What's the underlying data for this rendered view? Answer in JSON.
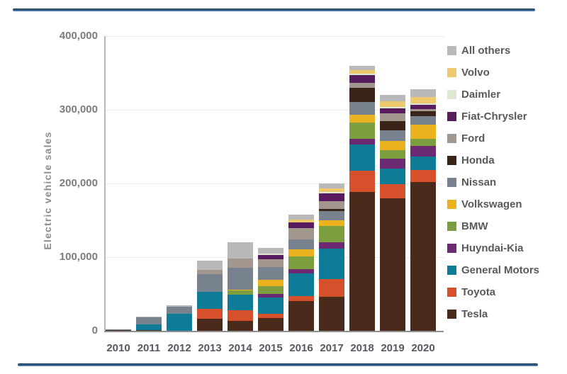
{
  "page": {
    "background_color": "#ffffff",
    "top_rule_color": "#35628e",
    "bottom_rule_color": "#35628e"
  },
  "chart_data": {
    "type": "bar",
    "stacked": true,
    "title": "",
    "xlabel": "",
    "ylabel": "Electric vehicle sales",
    "ylim": [
      0,
      400000
    ],
    "grid": true,
    "legend_position": "right",
    "categories": [
      "2010",
      "2011",
      "2012",
      "2013",
      "2014",
      "2015",
      "2016",
      "2017",
      "2018",
      "2019",
      "2020"
    ],
    "y_ticks": [
      {
        "value": 0,
        "label": "0"
      },
      {
        "value": 100000,
        "label": "100,000"
      },
      {
        "value": 200000,
        "label": "200,000"
      },
      {
        "value": 300000,
        "label": "300,000"
      },
      {
        "value": 400000,
        "label": "400,000"
      }
    ],
    "stack_order_note": "series listed bottom-to-top; legend shows reverse order (top-to-bottom)",
    "series": [
      {
        "name": "Tesla",
        "color": "#4a2a1b",
        "values": [
          500,
          800,
          0,
          16000,
          13000,
          17000,
          40000,
          46000,
          188000,
          180000,
          202000
        ]
      },
      {
        "name": "Toyota",
        "color": "#d7502c",
        "values": [
          0,
          0,
          0,
          14000,
          15000,
          6000,
          7000,
          24000,
          29000,
          19000,
          16000
        ]
      },
      {
        "name": "General Motors",
        "color": "#0e7c96",
        "values": [
          800,
          8000,
          23000,
          23000,
          21000,
          22000,
          31000,
          42000,
          36000,
          21000,
          19000
        ]
      },
      {
        "name": "Huyndai-Kia",
        "color": "#6b2a72",
        "values": [
          0,
          0,
          0,
          0,
          0,
          5000,
          6000,
          8000,
          8000,
          14000,
          14000
        ]
      },
      {
        "name": "BMW",
        "color": "#7b9e3f",
        "values": [
          0,
          0,
          0,
          0,
          6000,
          11000,
          17000,
          22000,
          22000,
          11000,
          10000
        ]
      },
      {
        "name": "Volkswagen",
        "color": "#ecb11f",
        "values": [
          0,
          0,
          0,
          0,
          1000,
          8000,
          10000,
          8000,
          10000,
          13000,
          19000
        ]
      },
      {
        "name": "Nissan",
        "color": "#77828e",
        "values": [
          700,
          9000,
          10000,
          24000,
          30000,
          18000,
          13000,
          13000,
          18000,
          14000,
          11000
        ]
      },
      {
        "name": "Honda",
        "color": "#3a2317",
        "values": [
          0,
          0,
          0,
          0,
          0,
          0,
          0,
          2000,
          19000,
          13000,
          7000
        ]
      },
      {
        "name": "Ford",
        "color": "#a2978e",
        "values": [
          0,
          0,
          0,
          6000,
          12000,
          10000,
          15000,
          11000,
          7000,
          10000,
          3000
        ]
      },
      {
        "name": "Fiat-Chrysler",
        "color": "#571b5e",
        "values": [
          0,
          0,
          0,
          0,
          0,
          6000,
          8000,
          11000,
          10000,
          7000,
          6000
        ]
      },
      {
        "name": "Daimler",
        "color": "#dde8d2",
        "values": [
          0,
          0,
          0,
          0,
          0,
          2000,
          0,
          2000,
          2000,
          2000,
          2000
        ]
      },
      {
        "name": "Volvo",
        "color": "#eec96d",
        "values": [
          0,
          0,
          0,
          0,
          0,
          0,
          4000,
          4000,
          5000,
          8000,
          8000
        ]
      },
      {
        "name": "All others",
        "color": "#b9b9b9",
        "values": [
          0,
          1000,
          2000,
          12000,
          22000,
          8000,
          7000,
          7000,
          6000,
          8000,
          11000
        ]
      }
    ]
  }
}
